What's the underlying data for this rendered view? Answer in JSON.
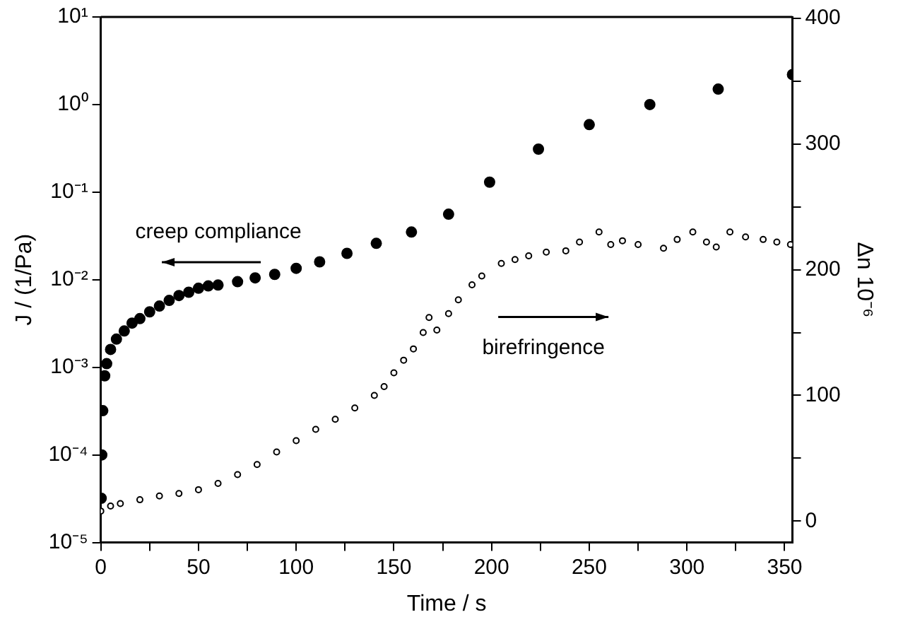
{
  "chart_data": {
    "type": "scatter",
    "xlabel": "Time / s",
    "ylabel": "J / (1/Pa)",
    "y2label": "Δn 10⁻⁶",
    "xlim": [
      0,
      354
    ],
    "xticks": [
      0,
      {
        "value": 25,
        "label": null
      },
      50,
      {
        "value": 75,
        "label": null
      },
      100,
      {
        "value": 125,
        "label": null
      },
      150,
      {
        "value": 175,
        "label": null
      },
      200,
      {
        "value": 225,
        "label": null
      },
      250,
      {
        "value": 275,
        "label": null
      },
      300,
      {
        "value": 325,
        "label": null
      },
      350
    ],
    "ylim": [
      1e-05,
      10
    ],
    "yticks": [
      {
        "value": 1e-05,
        "label": "10⁻⁵"
      },
      {
        "value": 0.0001,
        "label": "10⁻⁴"
      },
      {
        "value": 0.001,
        "label": "10⁻³"
      },
      {
        "value": 0.01,
        "label": "10⁻²"
      },
      {
        "value": 0.1,
        "label": "10⁻¹"
      },
      {
        "value": 1,
        "label": "10⁰"
      },
      {
        "value": 10,
        "label": "10¹"
      }
    ],
    "y2lim": [
      -17,
      401
    ],
    "y2ticks": [
      0,
      {
        "value": 50,
        "label": null
      },
      100,
      {
        "value": 150,
        "label": null
      },
      200,
      {
        "value": 250,
        "label": null
      },
      300,
      {
        "value": 350,
        "label": null
      },
      400
    ],
    "log": "y",
    "grid": false,
    "legend": false,
    "marker": "circle",
    "series": [
      {
        "color": "#000000",
        "x": [
          0.2,
          0.5,
          1,
          2,
          3,
          5,
          8,
          12,
          16,
          20,
          25,
          30,
          35,
          40,
          45,
          50,
          55,
          60,
          70,
          79,
          89,
          100,
          112,
          126,
          141,
          159,
          178,
          199,
          224,
          250,
          281,
          316,
          354
        ],
        "values": [
          3.2e-05,
          0.0001,
          0.00032,
          0.0008,
          0.0011,
          0.0016,
          0.0021,
          0.0026,
          0.0032,
          0.0036,
          0.0043,
          0.005,
          0.0058,
          0.0066,
          0.0072,
          0.008,
          0.0085,
          0.0087,
          0.0095,
          0.0105,
          0.0115,
          0.0135,
          0.016,
          0.02,
          0.026,
          0.035,
          0.056,
          0.13,
          0.31,
          0.59,
          1.0,
          1.5,
          2.2
        ]
      },
      {
        "color": "#000000",
        "axis": "y2",
        "x": [
          0,
          5,
          10,
          20,
          30,
          40,
          50,
          60,
          70,
          80,
          90,
          100,
          110,
          120,
          130,
          140,
          145,
          150,
          155,
          160,
          165,
          168,
          172,
          178,
          183,
          190,
          195,
          205,
          212,
          219,
          228,
          238,
          245,
          255,
          261,
          267,
          275,
          288,
          295,
          303,
          310,
          315,
          322,
          330,
          339,
          346,
          353
        ],
        "values": [
          8,
          12,
          14,
          17,
          20,
          22,
          25,
          30,
          37,
          45,
          55,
          64,
          73,
          81,
          90,
          100,
          107,
          118,
          128,
          137,
          150,
          162,
          152,
          165,
          176,
          188,
          195,
          205,
          208,
          211,
          214,
          215,
          222,
          230,
          220,
          223,
          220,
          217,
          224,
          230,
          222,
          218,
          230,
          226,
          224,
          222,
          220
        ]
      }
    ],
    "annotations": [
      "creep compliance",
      "birefringence"
    ]
  }
}
